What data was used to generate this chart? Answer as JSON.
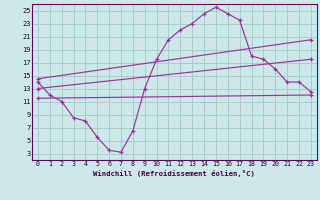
{
  "background_color": "#cce8e8",
  "grid_color": "#aacccc",
  "line_color": "#993399",
  "xlim": [
    -0.5,
    23.5
  ],
  "ylim": [
    2,
    26
  ],
  "xticks": [
    0,
    1,
    2,
    3,
    4,
    5,
    6,
    7,
    8,
    9,
    10,
    11,
    12,
    13,
    14,
    15,
    16,
    17,
    18,
    19,
    20,
    21,
    22,
    23
  ],
  "yticks": [
    3,
    5,
    7,
    9,
    11,
    13,
    15,
    17,
    19,
    21,
    23,
    25
  ],
  "xlabel": "Windchill (Refroidissement éolien,°C)",
  "curve_x": [
    0,
    1,
    2,
    3,
    4,
    5,
    6,
    7,
    8,
    9,
    10,
    11,
    12,
    13,
    14,
    15,
    16,
    17,
    18,
    19,
    20,
    21,
    22,
    23
  ],
  "curve_y": [
    14,
    12,
    11,
    8.5,
    8,
    5.5,
    3.5,
    3.2,
    6.5,
    13,
    17.5,
    20.5,
    22,
    23,
    24.5,
    25.5,
    24.5,
    23.5,
    18,
    17.5,
    16,
    14,
    14,
    12.5
  ],
  "line2_x": [
    0,
    23
  ],
  "line2_y": [
    14.5,
    20.5
  ],
  "line3_x": [
    0,
    23
  ],
  "line3_y": [
    13.0,
    17.5
  ],
  "line4_x": [
    0,
    23
  ],
  "line4_y": [
    11.5,
    12.0
  ]
}
